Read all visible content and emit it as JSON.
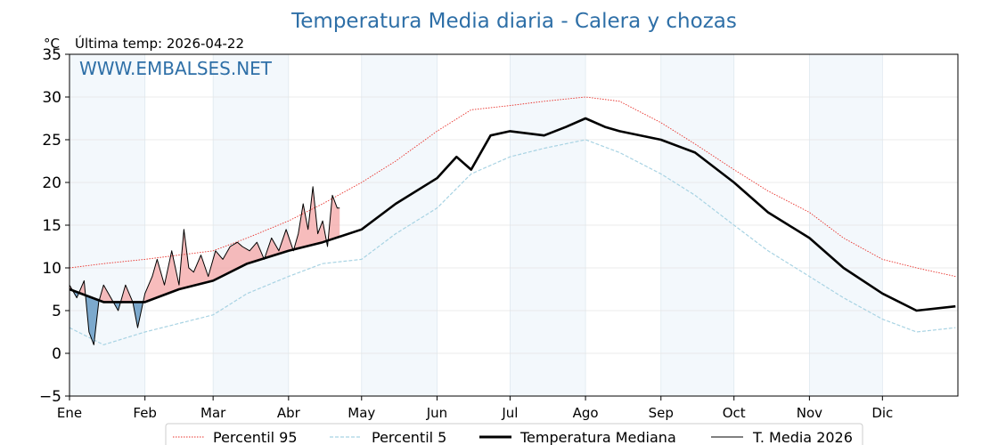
{
  "chart_data": {
    "type": "line",
    "title": "Temperatura Media diaria - Calera y chozas",
    "unit": "°C",
    "last_temp": "Última temp: 2026-04-22",
    "watermark": "WWW.EMBALSES.NET",
    "xlabel": "",
    "ylabel": "",
    "ylim": [
      -5,
      35
    ],
    "yticks": [
      -5,
      0,
      5,
      10,
      15,
      20,
      25,
      30,
      35
    ],
    "ytick_labels": [
      "−5",
      "0",
      "5",
      "10",
      "15",
      "20",
      "25",
      "30",
      "35"
    ],
    "months": [
      "Ene",
      "Feb",
      "Mar",
      "Abr",
      "May",
      "Jun",
      "Jul",
      "Ago",
      "Sep",
      "Oct",
      "Nov",
      "Dic"
    ],
    "month_start_days": [
      1,
      32,
      60,
      91,
      121,
      152,
      182,
      213,
      244,
      274,
      305,
      335
    ],
    "grid": true,
    "legend_position": "bottom",
    "series": [
      {
        "name": "Percentil 95",
        "color": "#e8312b",
        "style": "dotted",
        "x": [
          1,
          15,
          32,
          46,
          60,
          74,
          91,
          105,
          121,
          135,
          152,
          166,
          182,
          196,
          213,
          227,
          244,
          258,
          274,
          288,
          305,
          319,
          335,
          349,
          365
        ],
        "values": [
          10,
          10.5,
          11,
          11.5,
          12,
          13.5,
          15.5,
          17.5,
          20,
          22.5,
          26,
          28.5,
          29,
          29.5,
          30,
          29.5,
          27,
          24.5,
          21.5,
          19,
          16.5,
          13.5,
          11,
          10,
          9
        ]
      },
      {
        "name": "Percentil 5",
        "color": "#a8d3e3",
        "style": "dashed",
        "x": [
          1,
          15,
          32,
          46,
          60,
          74,
          91,
          105,
          121,
          135,
          152,
          166,
          182,
          196,
          213,
          227,
          244,
          258,
          274,
          288,
          305,
          319,
          335,
          349,
          365
        ],
        "values": [
          3,
          1,
          2.5,
          3.5,
          4.5,
          7,
          9,
          10.5,
          11,
          14,
          17,
          21,
          23,
          24,
          25,
          23.5,
          21,
          18.5,
          15,
          12,
          9,
          6.5,
          4,
          2.5,
          3
        ]
      },
      {
        "name": "Temperatura Mediana",
        "color": "#000000",
        "style": "thick",
        "x": [
          1,
          15,
          32,
          46,
          60,
          74,
          91,
          105,
          121,
          135,
          152,
          160,
          166,
          174,
          182,
          196,
          205,
          213,
          221,
          227,
          244,
          258,
          274,
          288,
          305,
          319,
          335,
          349,
          365
        ],
        "values": [
          7.5,
          6,
          6,
          7.5,
          8.5,
          10.5,
          12,
          13,
          14.5,
          17.5,
          20.5,
          23,
          21.5,
          25.5,
          26,
          25.5,
          26.5,
          27.5,
          26.5,
          26,
          25,
          23.5,
          20,
          16.5,
          13.5,
          10,
          7,
          5,
          5.5
        ]
      },
      {
        "name": "T. Media 2026",
        "color": "#000000",
        "style": "thin",
        "x": [
          1,
          4,
          7,
          9,
          11,
          13,
          15,
          18,
          21,
          24,
          27,
          29,
          32,
          35,
          37,
          40,
          43,
          46,
          48,
          50,
          52,
          55,
          58,
          61,
          64,
          67,
          70,
          72,
          75,
          78,
          81,
          84,
          87,
          90,
          93,
          95,
          97,
          99,
          101,
          103,
          105,
          107,
          109,
          111,
          112
        ],
        "values": [
          8,
          6.5,
          8.5,
          2.5,
          1,
          6,
          8,
          6.5,
          5,
          8,
          6,
          3,
          7,
          9,
          11,
          8,
          12,
          8,
          14.5,
          10,
          9.5,
          11.5,
          9,
          12,
          11,
          12.5,
          13,
          12.5,
          12,
          13,
          11,
          13.5,
          12,
          14.5,
          12,
          14,
          17.5,
          14.5,
          19.5,
          14,
          15.5,
          12.5,
          18.5,
          17,
          17
        ]
      }
    ]
  }
}
